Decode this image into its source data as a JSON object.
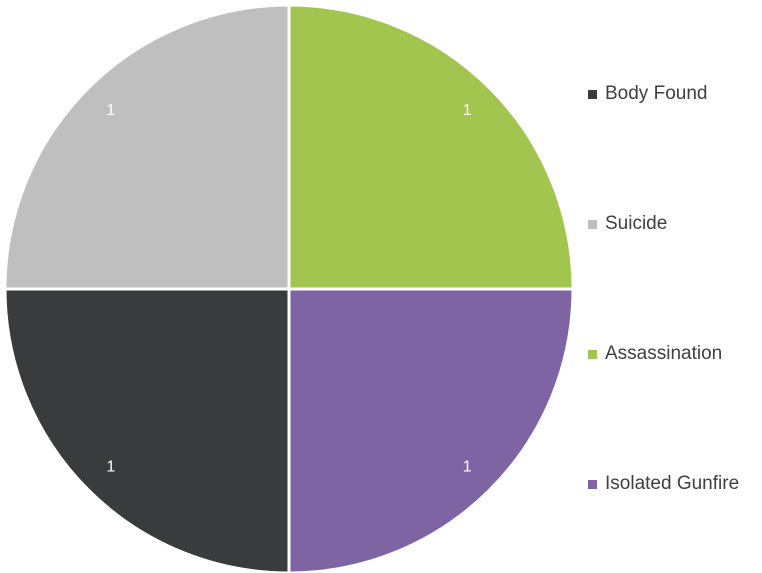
{
  "chart_data": {
    "type": "pie",
    "categories": [
      "Body Found",
      "Suicide",
      "Assassination",
      "Isolated Gunfire"
    ],
    "values": [
      1,
      1,
      1,
      1
    ],
    "colors": [
      "#3a3b3d",
      "#bfbfbf",
      "#a2c550",
      "#7f64a3"
    ],
    "data_labels": [
      "1",
      "1",
      "1",
      "1"
    ],
    "legend_position": "right",
    "title": ""
  }
}
